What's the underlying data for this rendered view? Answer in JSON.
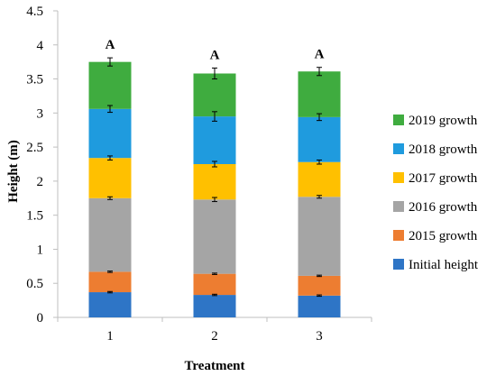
{
  "chart_data": {
    "type": "bar",
    "stacked": true,
    "title": "",
    "xlabel": "Treatment",
    "ylabel": "Height (m)",
    "ylim": [
      0,
      4.5
    ],
    "y_ticks": [
      "0",
      "0.5",
      "1",
      "1.5",
      "2",
      "2.5",
      "3",
      "3.5",
      "4",
      "4.5"
    ],
    "categories": [
      "1",
      "2",
      "3"
    ],
    "grid": false,
    "legend_position": "right",
    "series": [
      {
        "name": "Initial height",
        "color": "#2e75c6",
        "values": [
          0.37,
          0.33,
          0.32
        ],
        "error": [
          0.01,
          0.01,
          0.01
        ]
      },
      {
        "name": "2015 growth",
        "color": "#ed7d31",
        "values": [
          0.3,
          0.31,
          0.29
        ],
        "error": [
          0.01,
          0.01,
          0.01
        ]
      },
      {
        "name": "2016 growth",
        "color": "#a5a5a5",
        "values": [
          1.08,
          1.09,
          1.16
        ],
        "error": [
          0.02,
          0.03,
          0.02
        ]
      },
      {
        "name": "2017 growth",
        "color": "#ffc000",
        "values": [
          0.59,
          0.52,
          0.51
        ],
        "error": [
          0.03,
          0.04,
          0.03
        ]
      },
      {
        "name": "2018 growth",
        "color": "#1f9bde",
        "values": [
          0.72,
          0.7,
          0.66
        ],
        "error": [
          0.05,
          0.07,
          0.05
        ]
      },
      {
        "name": "2019 growth",
        "color": "#3fac3f",
        "values": [
          0.69,
          0.63,
          0.67
        ],
        "error": [
          0.06,
          0.08,
          0.06
        ]
      }
    ],
    "annotations": [
      "A",
      "A",
      "A"
    ]
  }
}
